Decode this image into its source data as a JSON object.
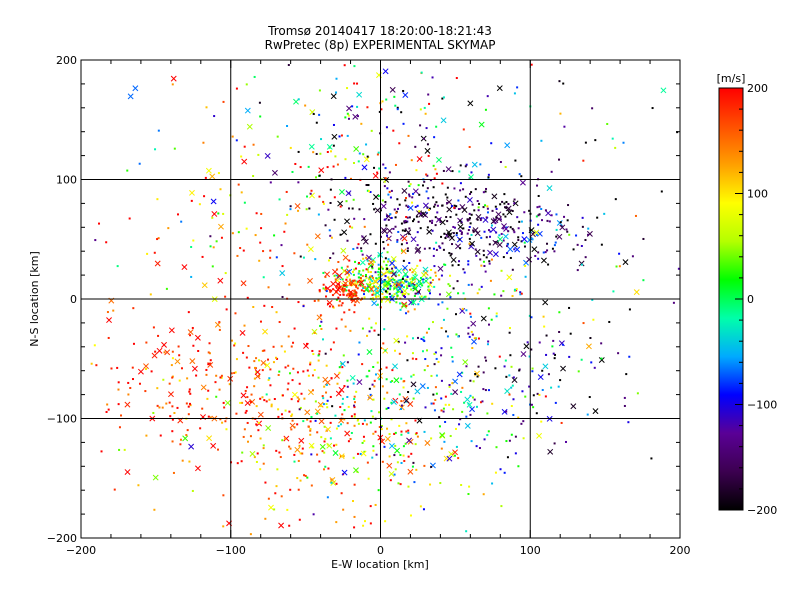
{
  "chart_data": {
    "type": "scatter",
    "title": "Tromsø 20140417 18:20:00-18:21:43",
    "subtitle": "RwPretec (8p) EXPERIMENTAL SKYMAP",
    "xlabel": "E-W location [km]",
    "ylabel": "N-S location [km]",
    "xlim": [
      -200,
      200
    ],
    "ylim": [
      -200,
      200
    ],
    "xticks": [
      -200,
      -100,
      0,
      100,
      200
    ],
    "yticks": [
      -200,
      -100,
      0,
      100,
      200
    ],
    "grid": true,
    "colorbar": {
      "label": "[m/s]",
      "min": -200,
      "max": 200,
      "ticks": [
        200,
        100,
        0,
        -100,
        -200
      ],
      "colormap": [
        "#000000",
        "#3c0050",
        "#5a0096",
        "#0000ff",
        "#00aaff",
        "#00ffaa",
        "#00ff00",
        "#b4ff00",
        "#ffff00",
        "#ffa000",
        "#ff5000",
        "#ff0000"
      ]
    },
    "marker_types": [
      "dot",
      "cross"
    ],
    "clusters": [
      {
        "x": 0,
        "y": 15,
        "sx": 14,
        "sy": 9,
        "n": 260,
        "v": 40,
        "sv": 70
      },
      {
        "x": -22,
        "y": 8,
        "sx": 8,
        "sy": 8,
        "n": 100,
        "v": 185,
        "sv": 20
      },
      {
        "x": 18,
        "y": 8,
        "sx": 10,
        "sy": 7,
        "n": 80,
        "v": -30,
        "sv": 70
      },
      {
        "x": 45,
        "y": 68,
        "sx": 40,
        "sy": 20,
        "n": 340,
        "v": -165,
        "sv": 45
      },
      {
        "x": 95,
        "y": 52,
        "sx": 25,
        "sy": 12,
        "n": 100,
        "v": -120,
        "sv": 70
      },
      {
        "x": -20,
        "y": 120,
        "sx": 45,
        "sy": 40,
        "n": 160,
        "v": 0,
        "sv": 150
      },
      {
        "x": 0,
        "y": 135,
        "sx": 80,
        "sy": 50,
        "n": 120,
        "v": -60,
        "sv": 140
      },
      {
        "x": -60,
        "y": -80,
        "sx": 50,
        "sy": 45,
        "n": 330,
        "v": 160,
        "sv": 55
      },
      {
        "x": -130,
        "y": -70,
        "sx": 40,
        "sy": 30,
        "n": 110,
        "v": 180,
        "sv": 35
      },
      {
        "x": -10,
        "y": -130,
        "sx": 45,
        "sy": 35,
        "n": 150,
        "v": 110,
        "sv": 70
      },
      {
        "x": 30,
        "y": -90,
        "sx": 40,
        "sy": 35,
        "n": 170,
        "v": -30,
        "sv": 90
      },
      {
        "x": 85,
        "y": -65,
        "sx": 45,
        "sy": 30,
        "n": 110,
        "v": -130,
        "sv": 80
      },
      {
        "x": 10,
        "y": -40,
        "sx": 40,
        "sy": 30,
        "n": 80,
        "v": 20,
        "sv": 110
      },
      {
        "x": 60,
        "y": 10,
        "sx": 30,
        "sy": 20,
        "n": 60,
        "v": 20,
        "sv": 100
      },
      {
        "x": -60,
        "y": 60,
        "sx": 45,
        "sy": 40,
        "n": 80,
        "v": 150,
        "sv": 80
      },
      {
        "x": -140,
        "y": 60,
        "sx": 40,
        "sy": 80,
        "n": 40,
        "v": 120,
        "sv": 100
      },
      {
        "x": 150,
        "y": 20,
        "sx": 35,
        "sy": 80,
        "n": 40,
        "v": -80,
        "sv": 140
      }
    ]
  }
}
